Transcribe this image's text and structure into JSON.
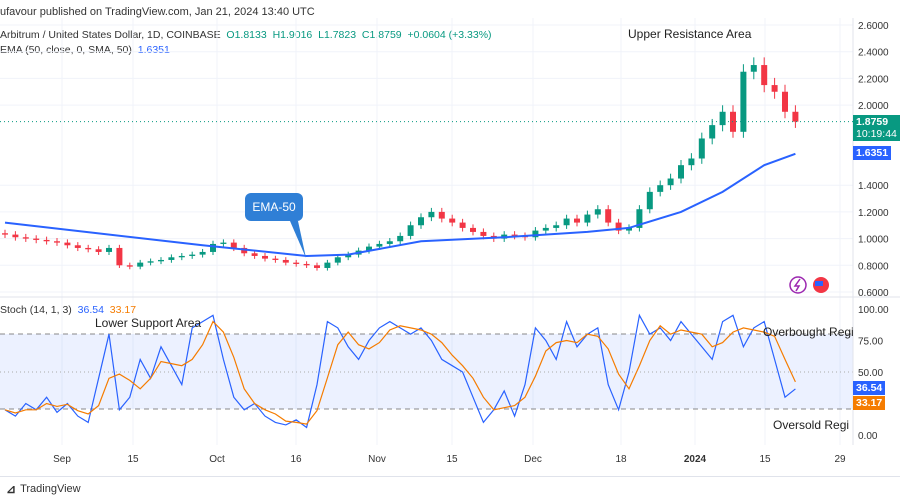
{
  "header": {
    "published": "ufavour published on TradingView.com, Jan 21, 2024 13:40 UTC",
    "symbol": "Arbitrum / United States Dollar, 1D, COINBASE",
    "o": "O1.8133",
    "h": "H1.9016",
    "l": "L1.7823",
    "c": "C1.8759",
    "chg": "+0.0604 (+3.33%)",
    "ema_label": "EMA (50, close, 0, SMA, 50)",
    "ema_value": "1.6351",
    "stoch_label": "Stoch (14, 1, 3)",
    "stoch_k": "36.54",
    "stoch_d": "33.17"
  },
  "badges": {
    "price": "1.8759",
    "countdown": "10:19:44",
    "ema": "1.6351",
    "k": "36.54",
    "d": "33.17"
  },
  "annotations": {
    "upper": "Upper Resistance Area",
    "ema_callout": "EMA-50",
    "lower": "Lower Support Area",
    "overbought": "Overbought Regi",
    "oversold": "Oversold Regi"
  },
  "footer": {
    "brand": "TradingView"
  },
  "colors": {
    "up": "#089981",
    "down": "#f23645",
    "ema": "#2962ff",
    "k": "#2962ff",
    "d": "#f57c00"
  },
  "icons": [
    "lightning-icon",
    "us-flag-icon",
    "tradingview-logo-icon"
  ],
  "chart_data": [
    {
      "type": "candlestick",
      "ylim": [
        0.6,
        2.6
      ],
      "yticks": [
        "2.6000",
        "2.4000",
        "2.2000",
        "2.0000",
        "1.4000",
        "1.2000",
        "1.0000",
        "0.8000",
        "0.6000"
      ],
      "xticks": [
        "Sep",
        "15",
        "Oct",
        "16",
        "Nov",
        "15",
        "Dec",
        "18",
        "2024",
        "15",
        "29"
      ],
      "closes": [
        1.03,
        1.01,
        1.0,
        0.99,
        0.98,
        0.97,
        0.95,
        0.93,
        0.92,
        0.9,
        0.93,
        0.8,
        0.79,
        0.82,
        0.83,
        0.84,
        0.86,
        0.87,
        0.88,
        0.9,
        0.96,
        0.97,
        0.93,
        0.89,
        0.87,
        0.85,
        0.84,
        0.82,
        0.81,
        0.8,
        0.78,
        0.82,
        0.86,
        0.88,
        0.91,
        0.94,
        0.96,
        0.98,
        1.02,
        1.1,
        1.16,
        1.2,
        1.15,
        1.12,
        1.08,
        1.05,
        1.02,
        1.0,
        1.03,
        1.02,
        1.01,
        1.06,
        1.08,
        1.1,
        1.15,
        1.12,
        1.18,
        1.22,
        1.12,
        1.06,
        1.08,
        1.22,
        1.35,
        1.4,
        1.45,
        1.55,
        1.6,
        1.75,
        1.85,
        1.95,
        1.8,
        2.25,
        2.3,
        2.15,
        2.1,
        1.95,
        1.8759
      ],
      "ema": [
        [
          0,
          1.12
        ],
        [
          19,
          0.95
        ],
        [
          29,
          0.87
        ],
        [
          33,
          0.88
        ],
        [
          40,
          0.98
        ],
        [
          48,
          1.01
        ],
        [
          56,
          1.05
        ],
        [
          60,
          1.08
        ],
        [
          65,
          1.2
        ],
        [
          69,
          1.35
        ],
        [
          73,
          1.55
        ],
        [
          76,
          1.6351
        ]
      ]
    },
    {
      "type": "line",
      "name": "Stoch",
      "ylim": [
        0,
        100
      ],
      "yticks": [
        "100.00",
        "75.00",
        "50.00",
        "0.00"
      ],
      "bands": [
        20,
        80
      ],
      "k": [
        20,
        15,
        25,
        20,
        30,
        18,
        25,
        15,
        10,
        45,
        80,
        20,
        30,
        60,
        45,
        70,
        55,
        40,
        85,
        90,
        95,
        60,
        30,
        20,
        25,
        15,
        10,
        8,
        12,
        6,
        40,
        90,
        85,
        70,
        60,
        75,
        85,
        90,
        85,
        80,
        85,
        75,
        60,
        55,
        50,
        30,
        10,
        20,
        35,
        15,
        40,
        85,
        75,
        60,
        90,
        70,
        80,
        85,
        40,
        20,
        50,
        95,
        80,
        85,
        75,
        90,
        80,
        70,
        60,
        90,
        95,
        70,
        85,
        90,
        60,
        30,
        36.54
      ]
    }
  ]
}
